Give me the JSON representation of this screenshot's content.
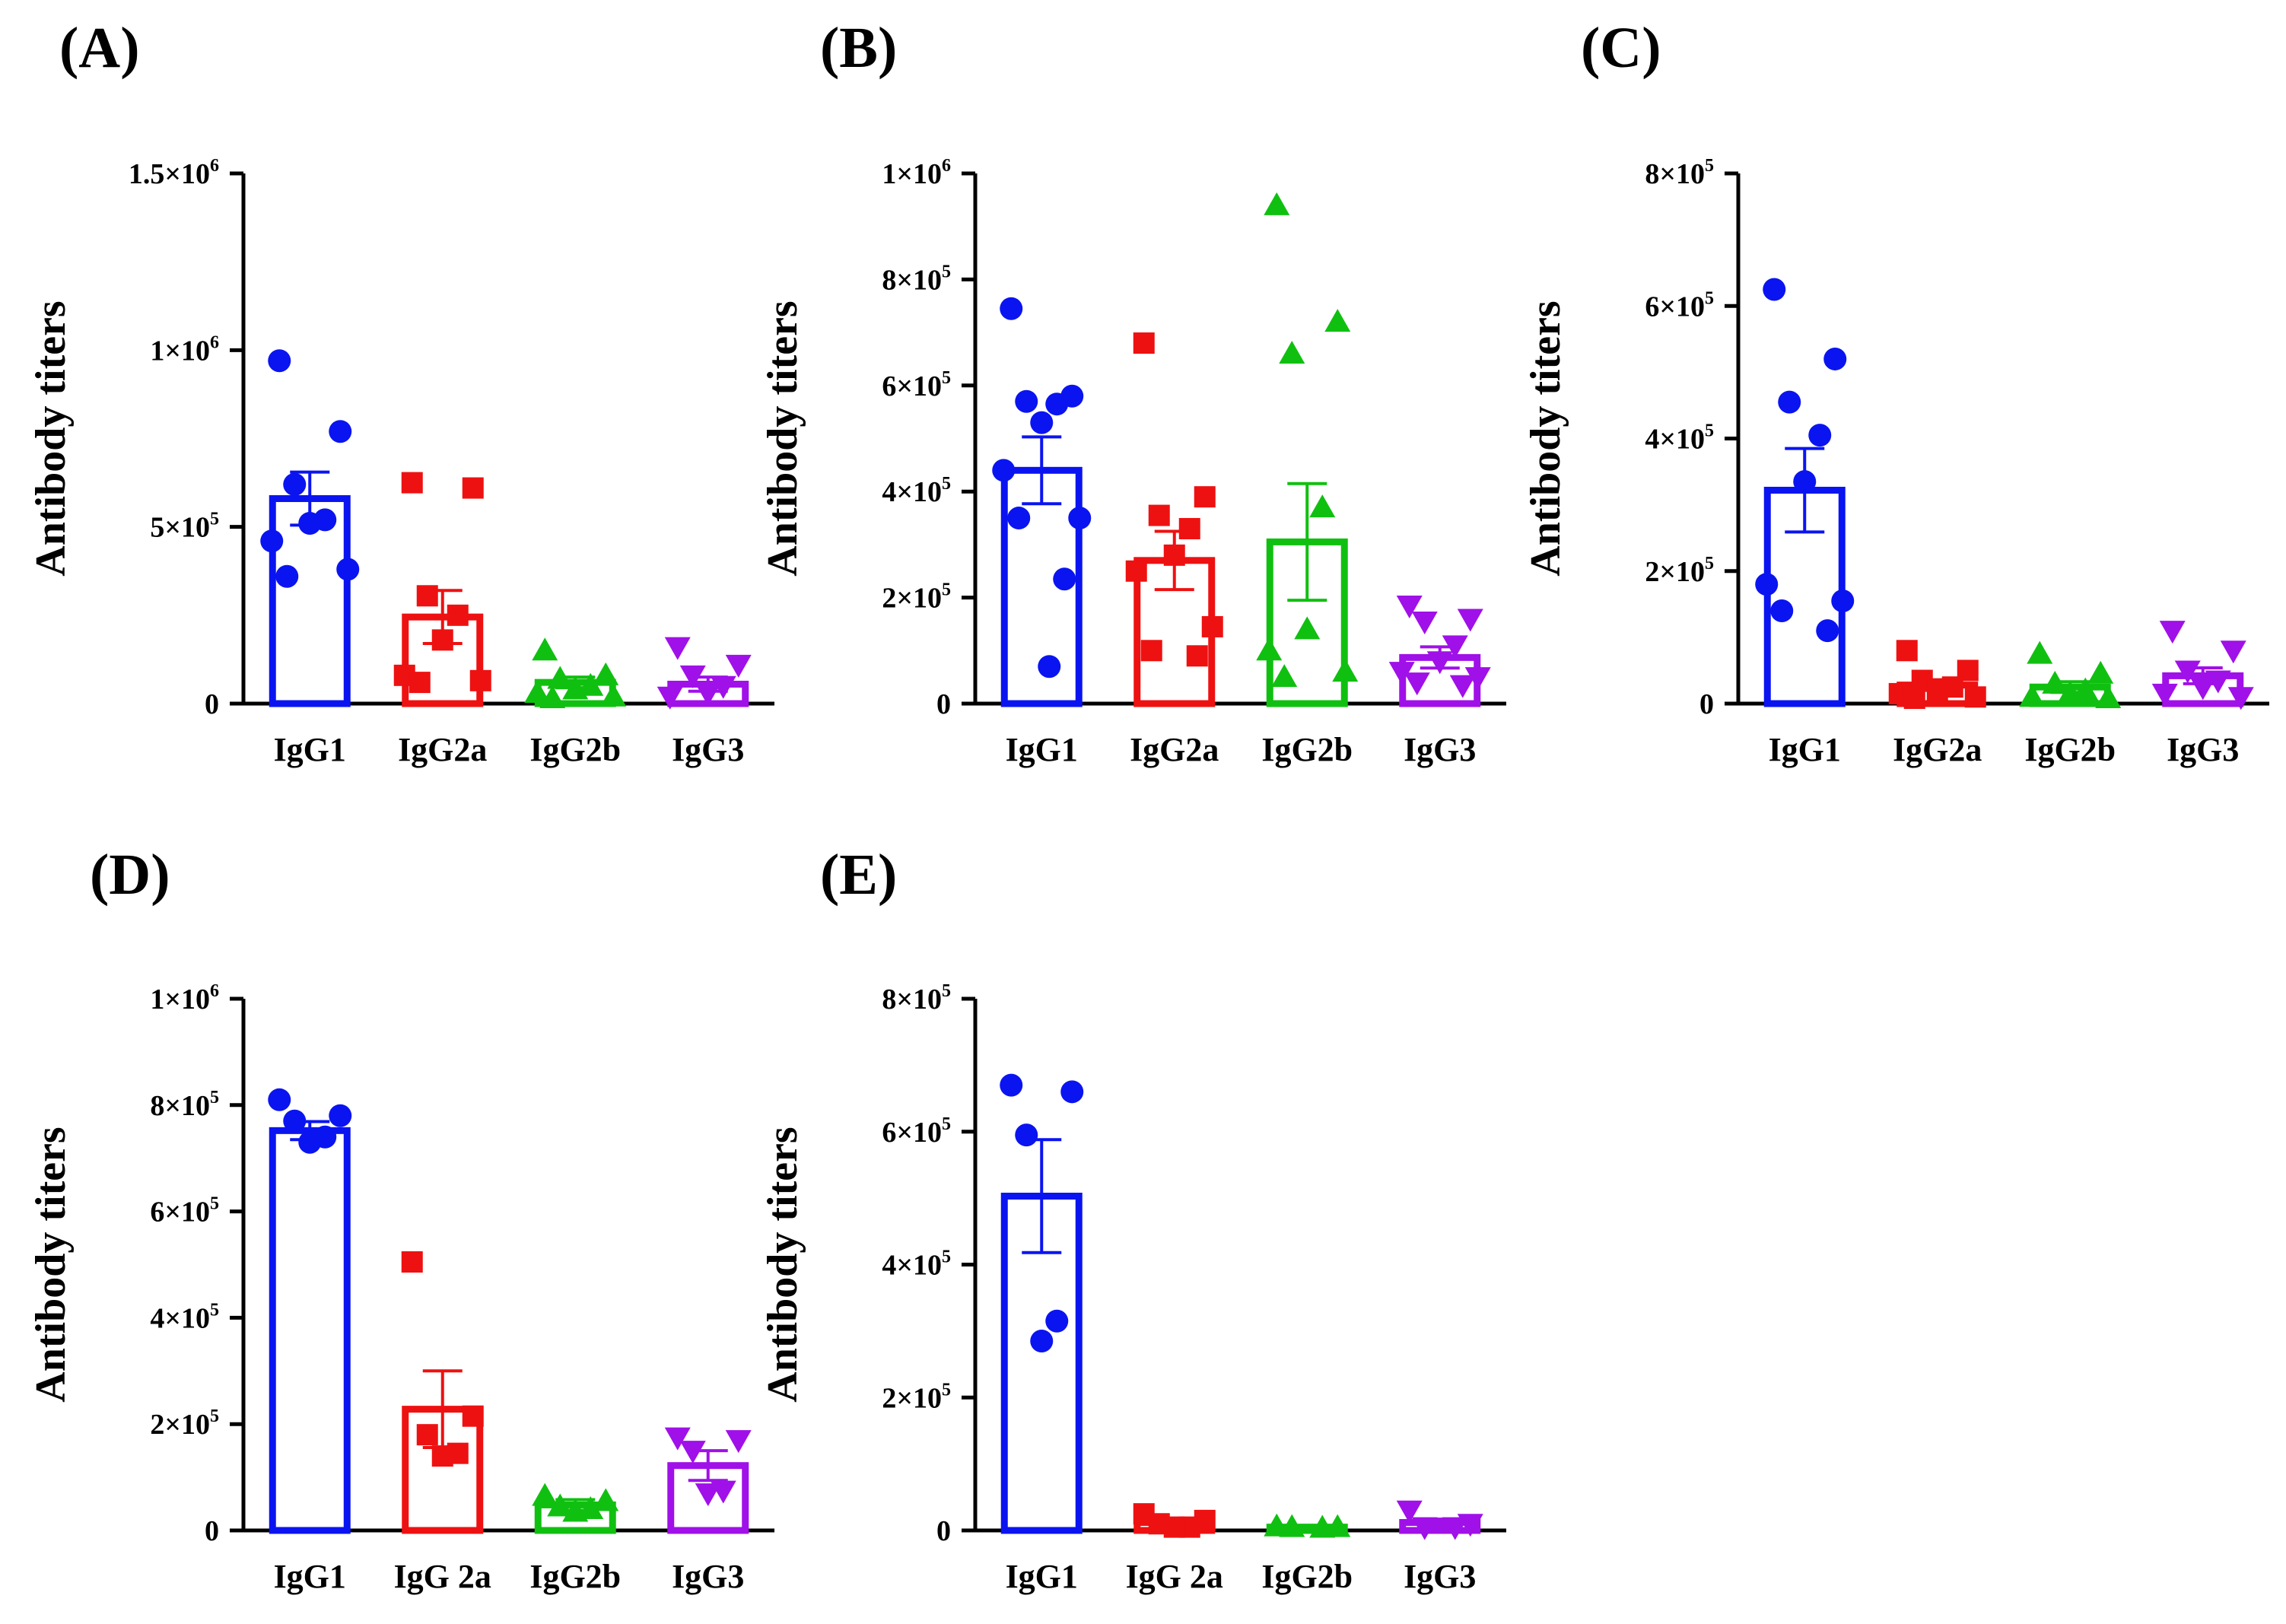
{
  "figure": {
    "series_colors": {
      "IgG1": "#0a14f0",
      "IgG2a": "#ee1111",
      "IgG2b": "#10c010",
      "IgG3": "#a010e8"
    },
    "markers": {
      "IgG1": "circle",
      "IgG2a": "square",
      "IgG2b": "triangle-up",
      "IgG3": "triangle-down"
    }
  },
  "chart_data": [
    {
      "panel": "(A)",
      "type": "bar",
      "ylabel": "Antibody titers",
      "ylim": [
        0,
        1500000
      ],
      "yticks": [
        {
          "value": 0,
          "base": "0",
          "exp": ""
        },
        {
          "value": 500000,
          "base": "5×10",
          "exp": "5"
        },
        {
          "value": 1000000,
          "base": "1×10",
          "exp": "6"
        },
        {
          "value": 1500000,
          "base": "1.5×10",
          "exp": "6"
        }
      ],
      "categories": [
        "IgG1",
        "IgG2a",
        "IgG2b",
        "IgG3"
      ],
      "series": [
        {
          "name": "IgG1",
          "mean": 580000,
          "sem": 75000,
          "points": [
            970000,
            770000,
            620000,
            520000,
            510000,
            460000,
            380000,
            360000
          ]
        },
        {
          "name": "IgG2a",
          "mean": 245000,
          "sem": 75000,
          "points": [
            625000,
            610000,
            305000,
            250000,
            180000,
            80000,
            65000,
            60000
          ]
        },
        {
          "name": "IgG2b",
          "mean": 60000,
          "sem": 15000,
          "points": [
            150000,
            80000,
            70000,
            50000,
            40000,
            30000,
            20000,
            15000
          ]
        },
        {
          "name": "IgG3",
          "mean": 55000,
          "sem": 20000,
          "points": [
            160000,
            110000,
            80000,
            50000,
            30000,
            20000
          ]
        }
      ]
    },
    {
      "panel": "(B)",
      "type": "bar",
      "ylabel": "Antibody titers",
      "ylim": [
        0,
        1000000
      ],
      "yticks": [
        {
          "value": 0,
          "base": "0",
          "exp": ""
        },
        {
          "value": 200000,
          "base": "2×10",
          "exp": "5"
        },
        {
          "value": 400000,
          "base": "4×10",
          "exp": "5"
        },
        {
          "value": 600000,
          "base": "6×10",
          "exp": "5"
        },
        {
          "value": 800000,
          "base": "8×10",
          "exp": "5"
        },
        {
          "value": 1000000,
          "base": "1×10",
          "exp": "6"
        }
      ],
      "categories": [
        "IgG1",
        "IgG2a",
        "IgG2b",
        "IgG3"
      ],
      "series": [
        {
          "name": "IgG1",
          "mean": 440000,
          "sem": 63000,
          "points": [
            745000,
            580000,
            570000,
            565000,
            530000,
            440000,
            350000,
            350000,
            235000,
            70000
          ]
        },
        {
          "name": "IgG2a",
          "mean": 270000,
          "sem": 55000,
          "points": [
            680000,
            390000,
            355000,
            330000,
            280000,
            250000,
            145000,
            100000,
            90000
          ]
        },
        {
          "name": "IgG2b",
          "mean": 305000,
          "sem": 110000,
          "points": [
            940000,
            720000,
            660000,
            370000,
            140000,
            100000,
            60000,
            50000
          ]
        },
        {
          "name": "IgG3",
          "mean": 87000,
          "sem": 20000,
          "points": [
            185000,
            160000,
            155000,
            110000,
            80000,
            60000,
            50000,
            40000,
            35000
          ]
        }
      ]
    },
    {
      "panel": "(C)",
      "type": "bar",
      "ylabel": "Antibody titers",
      "ylim": [
        0,
        800000
      ],
      "yticks": [
        {
          "value": 0,
          "base": "0",
          "exp": ""
        },
        {
          "value": 200000,
          "base": "2×10",
          "exp": "5"
        },
        {
          "value": 400000,
          "base": "4×10",
          "exp": "5"
        },
        {
          "value": 600000,
          "base": "6×10",
          "exp": "5"
        },
        {
          "value": 800000,
          "base": "8×10",
          "exp": "5"
        }
      ],
      "categories": [
        "IgG1",
        "IgG2a",
        "IgG2b",
        "IgG3"
      ],
      "series": [
        {
          "name": "IgG1",
          "mean": 322000,
          "sem": 63000,
          "points": [
            625000,
            520000,
            455000,
            405000,
            335000,
            180000,
            155000,
            140000,
            110000
          ]
        },
        {
          "name": "IgG2a",
          "mean": 28000,
          "sem": 8000,
          "points": [
            80000,
            50000,
            35000,
            25000,
            20000,
            15000,
            10000,
            8000
          ]
        },
        {
          "name": "IgG2b",
          "mean": 25000,
          "sem": 8000,
          "points": [
            75000,
            45000,
            30000,
            20000,
            15000,
            10000,
            8000
          ]
        },
        {
          "name": "IgG3",
          "mean": 42000,
          "sem": 12000,
          "points": [
            110000,
            80000,
            50000,
            35000,
            25000,
            15000,
            10000
          ]
        }
      ]
    },
    {
      "panel": "(D)",
      "type": "bar",
      "ylabel": "Antibody titers",
      "ylim": [
        0,
        1000000
      ],
      "yticks": [
        {
          "value": 0,
          "base": "0",
          "exp": ""
        },
        {
          "value": 200000,
          "base": "2×10",
          "exp": "5"
        },
        {
          "value": 400000,
          "base": "4×10",
          "exp": "5"
        },
        {
          "value": 600000,
          "base": "6×10",
          "exp": "5"
        },
        {
          "value": 800000,
          "base": "8×10",
          "exp": "5"
        },
        {
          "value": 1000000,
          "base": "1×10",
          "exp": "6"
        }
      ],
      "categories": [
        "IgG1",
        "IgG 2a",
        "IgG2b",
        "IgG3"
      ],
      "series": [
        {
          "name": "IgG1",
          "mean": 752000,
          "sem": 17000,
          "points": [
            810000,
            780000,
            770000,
            740000,
            730000
          ]
        },
        {
          "name": "IgG 2a",
          "mean": 228000,
          "sem": 72000,
          "points": [
            505000,
            215000,
            180000,
            145000,
            140000
          ]
        },
        {
          "name": "IgG2b",
          "mean": 48000,
          "sem": 10000,
          "points": [
            65000,
            55000,
            45000,
            40000,
            35000
          ]
        },
        {
          "name": "IgG3",
          "mean": 122000,
          "sem": 28000,
          "points": [
            175000,
            170000,
            150000,
            75000,
            70000
          ]
        }
      ]
    },
    {
      "panel": "(E)",
      "type": "bar",
      "ylabel": "Antibody titers",
      "ylim": [
        0,
        800000
      ],
      "yticks": [
        {
          "value": 0,
          "base": "0",
          "exp": ""
        },
        {
          "value": 200000,
          "base": "2×10",
          "exp": "5"
        },
        {
          "value": 400000,
          "base": "4×10",
          "exp": "5"
        },
        {
          "value": 600000,
          "base": "6×10",
          "exp": "5"
        },
        {
          "value": 800000,
          "base": "8×10",
          "exp": "5"
        }
      ],
      "categories": [
        "IgG1",
        "IgG 2a",
        "IgG2b",
        "IgG3"
      ],
      "series": [
        {
          "name": "IgG1",
          "mean": 503000,
          "sem": 85000,
          "points": [
            670000,
            660000,
            595000,
            315000,
            285000
          ]
        },
        {
          "name": "IgG 2a",
          "mean": 12000,
          "sem": 4000,
          "points": [
            25000,
            15000,
            10000,
            5000,
            5000
          ]
        },
        {
          "name": "IgG2b",
          "mean": 5000,
          "sem": 1000,
          "points": [
            6000,
            5000,
            5000,
            4000
          ]
        },
        {
          "name": "IgG3",
          "mean": 12000,
          "sem": 5000,
          "points": [
            30000,
            10000,
            5000,
            5000
          ]
        }
      ]
    }
  ]
}
